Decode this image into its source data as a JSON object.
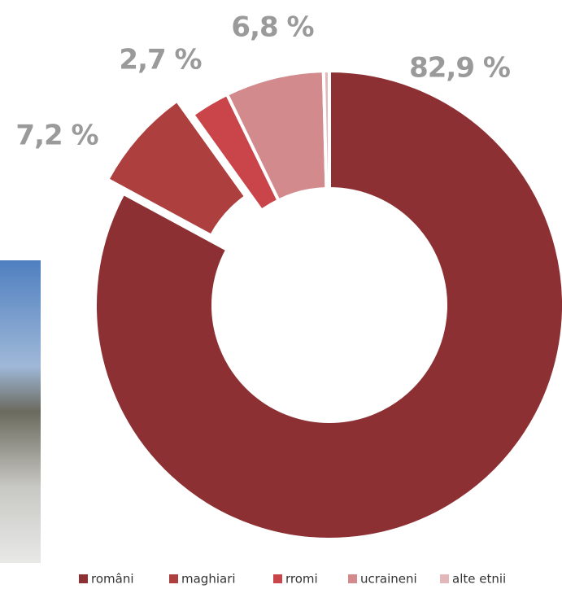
{
  "chart_data": {
    "type": "donut",
    "categories": [
      "români",
      "maghiari",
      "rromi",
      "ucraineni",
      "alte etnii"
    ],
    "values": [
      82.9,
      7.2,
      2.7,
      6.8,
      0.4
    ],
    "value_labels": [
      "82,9 %",
      "7,2 %",
      "2,7 %",
      "6,8 %",
      null
    ],
    "colors": [
      "#8d3033",
      "#ae3f3f",
      "#c9454a",
      "#d38a8d",
      "#e2b8ba"
    ],
    "legend": "bottom"
  }
}
